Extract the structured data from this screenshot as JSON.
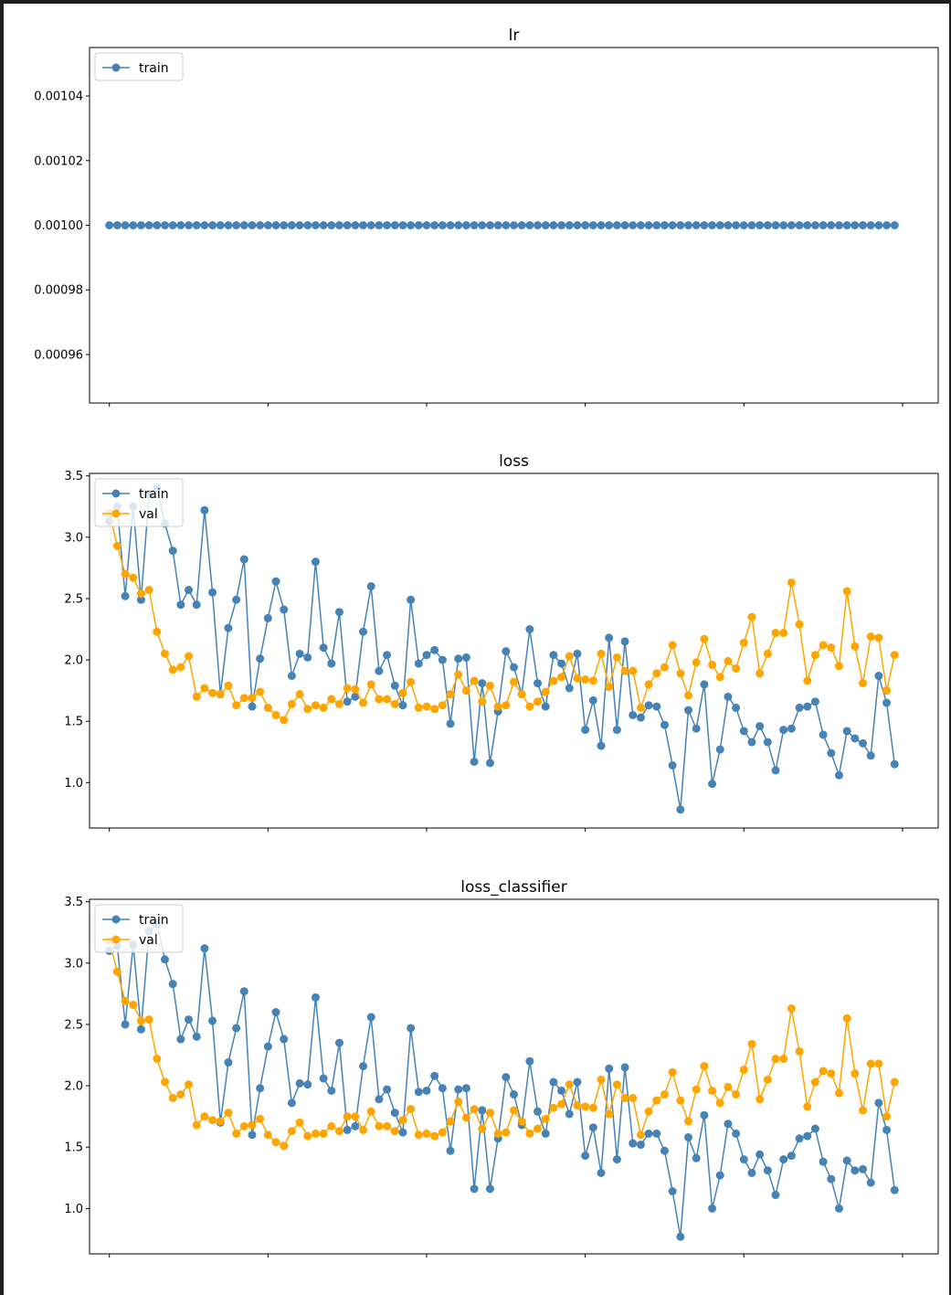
{
  "colors": {
    "train": "#4682b4",
    "val": "#ffa500",
    "background": "#ffffff",
    "frame": "#1e1e1e"
  },
  "chart_data": [
    {
      "type": "line",
      "title": "lr",
      "xlabel": "",
      "ylabel": "",
      "ylim": [
        0.000945,
        0.001055
      ],
      "yticks": [
        0.00096,
        0.00098,
        0.001,
        0.00102,
        0.00104
      ],
      "ytick_labels": [
        "0.00096",
        "0.00098",
        "0.00100",
        "0.00102",
        "0.00104"
      ],
      "xlim": [
        -2.5,
        104.5
      ],
      "xticks": [
        0,
        20,
        40,
        60,
        80,
        100
      ],
      "xtick_labels_visible": false,
      "grid": false,
      "legend": "top-left",
      "series": [
        {
          "name": "train",
          "color": "#4682b4",
          "values": [
            0.001,
            0.001,
            0.001,
            0.001,
            0.001,
            0.001,
            0.001,
            0.001,
            0.001,
            0.001,
            0.001,
            0.001,
            0.001,
            0.001,
            0.001,
            0.001,
            0.001,
            0.001,
            0.001,
            0.001,
            0.001,
            0.001,
            0.001,
            0.001,
            0.001,
            0.001,
            0.001,
            0.001,
            0.001,
            0.001,
            0.001,
            0.001,
            0.001,
            0.001,
            0.001,
            0.001,
            0.001,
            0.001,
            0.001,
            0.001,
            0.001,
            0.001,
            0.001,
            0.001,
            0.001,
            0.001,
            0.001,
            0.001,
            0.001,
            0.001,
            0.001,
            0.001,
            0.001,
            0.001,
            0.001,
            0.001,
            0.001,
            0.001,
            0.001,
            0.001,
            0.001,
            0.001,
            0.001,
            0.001,
            0.001,
            0.001,
            0.001,
            0.001,
            0.001,
            0.001,
            0.001,
            0.001,
            0.001,
            0.001,
            0.001,
            0.001,
            0.001,
            0.001,
            0.001,
            0.001,
            0.001,
            0.001,
            0.001,
            0.001,
            0.001,
            0.001,
            0.001,
            0.001,
            0.001,
            0.001,
            0.001,
            0.001,
            0.001,
            0.001,
            0.001,
            0.001,
            0.001,
            0.001,
            0.001,
            0.001
          ]
        }
      ]
    },
    {
      "type": "line",
      "title": "loss",
      "xlabel": "",
      "ylabel": "",
      "ylim": [
        0.63,
        3.52
      ],
      "yticks": [
        1.0,
        1.5,
        2.0,
        2.5,
        3.0,
        3.5
      ],
      "ytick_labels": [
        "1.0",
        "1.5",
        "2.0",
        "2.5",
        "3.0",
        "3.5"
      ],
      "xlim": [
        -2.5,
        104.5
      ],
      "xticks": [
        0,
        20,
        40,
        60,
        80,
        100
      ],
      "xtick_labels_visible": false,
      "grid": false,
      "legend": "top-left",
      "series": [
        {
          "name": "train",
          "color": "#4682b4",
          "values": [
            3.13,
            3.25,
            2.52,
            3.25,
            2.49,
            3.35,
            3.4,
            3.11,
            2.89,
            2.45,
            2.57,
            2.45,
            3.22,
            2.55,
            1.72,
            2.26,
            2.49,
            2.82,
            1.62,
            2.01,
            2.34,
            2.64,
            2.41,
            1.87,
            2.05,
            2.02,
            2.8,
            2.1,
            1.97,
            2.39,
            1.66,
            1.7,
            2.23,
            2.6,
            1.91,
            2.04,
            1.79,
            1.63,
            2.49,
            1.97,
            2.04,
            2.08,
            2.0,
            1.48,
            2.01,
            2.02,
            1.17,
            1.81,
            1.16,
            1.58,
            2.07,
            1.94,
            1.72,
            2.25,
            1.81,
            1.62,
            2.04,
            1.97,
            1.77,
            2.05,
            1.43,
            1.67,
            1.3,
            2.18,
            1.43,
            2.15,
            1.55,
            1.53,
            1.63,
            1.62,
            1.47,
            1.14,
            0.78,
            1.59,
            1.44,
            1.8,
            0.99,
            1.27,
            1.7,
            1.61,
            1.42,
            1.33,
            1.46,
            1.33,
            1.1,
            1.43,
            1.44,
            1.61,
            1.62,
            1.66,
            1.39,
            1.24,
            1.06,
            1.42,
            1.36,
            1.32,
            1.22,
            1.87,
            1.65,
            1.15
          ]
        },
        {
          "name": "val",
          "color": "#ffa500",
          "values": [
            3.2,
            2.93,
            2.7,
            2.67,
            2.54,
            2.57,
            2.23,
            2.05,
            1.92,
            1.94,
            2.03,
            1.7,
            1.77,
            1.73,
            1.72,
            1.79,
            1.63,
            1.69,
            1.69,
            1.74,
            1.61,
            1.55,
            1.51,
            1.64,
            1.72,
            1.6,
            1.63,
            1.61,
            1.68,
            1.64,
            1.77,
            1.76,
            1.65,
            1.8,
            1.68,
            1.68,
            1.64,
            1.73,
            1.82,
            1.61,
            1.62,
            1.6,
            1.63,
            1.72,
            1.88,
            1.75,
            1.83,
            1.66,
            1.79,
            1.62,
            1.63,
            1.82,
            1.72,
            1.62,
            1.66,
            1.74,
            1.83,
            1.86,
            2.03,
            1.85,
            1.84,
            1.83,
            2.05,
            1.78,
            2.02,
            1.91,
            1.91,
            1.61,
            1.8,
            1.89,
            1.94,
            2.12,
            1.89,
            1.71,
            1.98,
            2.17,
            1.96,
            1.86,
            1.99,
            1.93,
            2.14,
            2.35,
            1.89,
            2.05,
            2.22,
            2.22,
            2.63,
            2.29,
            1.83,
            2.04,
            2.12,
            2.1,
            1.95,
            2.56,
            2.11,
            1.81,
            2.19,
            2.18,
            1.75,
            2.04
          ]
        }
      ]
    },
    {
      "type": "line",
      "title": "loss_classifier",
      "xlabel": "",
      "ylabel": "",
      "ylim": [
        0.63,
        3.52
      ],
      "yticks": [
        1.0,
        1.5,
        2.0,
        2.5,
        3.0,
        3.5
      ],
      "ytick_labels": [
        "1.0",
        "1.5",
        "2.0",
        "2.5",
        "3.0",
        "3.5"
      ],
      "xlim": [
        -2.5,
        104.5
      ],
      "xticks": [
        0,
        20,
        40,
        60,
        80,
        100
      ],
      "xtick_labels_visible": false,
      "grid": false,
      "legend": "top-left",
      "series": [
        {
          "name": "train",
          "color": "#4682b4",
          "values": [
            3.1,
            3.14,
            2.5,
            3.15,
            2.46,
            3.26,
            3.32,
            3.03,
            2.83,
            2.38,
            2.54,
            2.4,
            3.12,
            2.53,
            1.7,
            2.19,
            2.47,
            2.77,
            1.6,
            1.98,
            2.32,
            2.6,
            2.38,
            1.86,
            2.02,
            2.01,
            2.72,
            2.06,
            1.96,
            2.35,
            1.64,
            1.67,
            2.16,
            2.56,
            1.89,
            1.97,
            1.78,
            1.62,
            2.47,
            1.95,
            1.96,
            2.08,
            1.98,
            1.47,
            1.97,
            1.98,
            1.16,
            1.8,
            1.16,
            1.57,
            2.07,
            1.93,
            1.68,
            2.2,
            1.79,
            1.61,
            2.03,
            1.96,
            1.77,
            2.03,
            1.43,
            1.66,
            1.29,
            2.14,
            1.4,
            2.15,
            1.53,
            1.52,
            1.61,
            1.61,
            1.47,
            1.14,
            0.77,
            1.58,
            1.41,
            1.76,
            1.0,
            1.27,
            1.69,
            1.61,
            1.4,
            1.29,
            1.44,
            1.31,
            1.11,
            1.4,
            1.43,
            1.57,
            1.59,
            1.65,
            1.38,
            1.24,
            1.0,
            1.39,
            1.31,
            1.32,
            1.21,
            1.86,
            1.64,
            1.15
          ]
        },
        {
          "name": "val",
          "color": "#ffa500",
          "values": [
            3.18,
            2.93,
            2.69,
            2.66,
            2.53,
            2.54,
            2.22,
            2.03,
            1.9,
            1.93,
            2.01,
            1.68,
            1.75,
            1.72,
            1.71,
            1.78,
            1.61,
            1.67,
            1.68,
            1.73,
            1.6,
            1.54,
            1.51,
            1.63,
            1.7,
            1.59,
            1.61,
            1.61,
            1.67,
            1.63,
            1.75,
            1.75,
            1.64,
            1.79,
            1.67,
            1.67,
            1.63,
            1.72,
            1.81,
            1.6,
            1.61,
            1.59,
            1.62,
            1.71,
            1.87,
            1.74,
            1.81,
            1.65,
            1.78,
            1.61,
            1.62,
            1.8,
            1.71,
            1.61,
            1.65,
            1.73,
            1.82,
            1.85,
            2.01,
            1.84,
            1.83,
            1.82,
            2.05,
            1.77,
            2.01,
            1.9,
            1.9,
            1.6,
            1.79,
            1.88,
            1.93,
            2.11,
            1.88,
            1.71,
            1.97,
            2.16,
            1.96,
            1.86,
            1.99,
            1.93,
            2.13,
            2.34,
            1.89,
            2.05,
            2.22,
            2.22,
            2.63,
            2.28,
            1.83,
            2.03,
            2.12,
            2.1,
            1.94,
            2.55,
            2.1,
            1.8,
            2.18,
            2.18,
            1.75,
            2.03
          ]
        }
      ]
    }
  ]
}
